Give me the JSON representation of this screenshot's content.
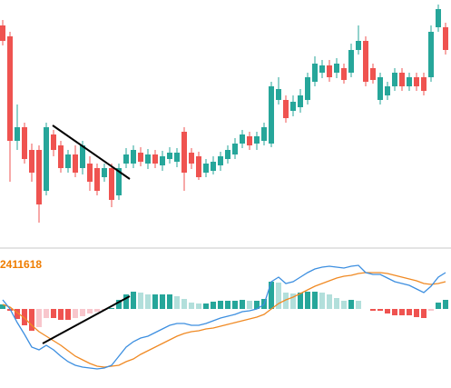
{
  "chart_data": [
    {
      "type": "candlestick",
      "ylim": [
        0,
        270
      ],
      "up_color": "#26a69a",
      "down_color": "#ef5350",
      "open": [
        242,
        230,
        115,
        130,
        105,
        105,
        60,
        122,
        110,
        85,
        100,
        85,
        90,
        85,
        75,
        85,
        55,
        90,
        90,
        102,
        90,
        100,
        88,
        95,
        92,
        125,
        102,
        98,
        80,
        82,
        88,
        95,
        100,
        112,
        120,
        112,
        115,
        112,
        160,
        160,
        148,
        152,
        160,
        180,
        190,
        198,
        190,
        195,
        190,
        215,
        225,
        195,
        160,
        165,
        175,
        190,
        175,
        185,
        185,
        185,
        240,
        240
      ],
      "high": [
        248,
        235,
        155,
        135,
        112,
        110,
        135,
        127,
        115,
        105,
        110,
        115,
        98,
        90,
        90,
        90,
        90,
        107,
        110,
        108,
        106,
        105,
        104,
        108,
        107,
        130,
        107,
        103,
        95,
        98,
        103,
        110,
        118,
        127,
        125,
        125,
        135,
        180,
        185,
        165,
        165,
        172,
        190,
        208,
        204,
        204,
        206,
        200,
        222,
        242,
        230,
        200,
        190,
        180,
        195,
        195,
        190,
        190,
        190,
        242,
        265,
        245
      ],
      "low": [
        220,
        70,
        105,
        90,
        70,
        25,
        55,
        98,
        80,
        80,
        75,
        78,
        60,
        55,
        70,
        42,
        50,
        85,
        85,
        87,
        84,
        85,
        82,
        90,
        86,
        60,
        84,
        72,
        75,
        78,
        82,
        90,
        95,
        107,
        105,
        105,
        110,
        108,
        155,
        135,
        142,
        146,
        155,
        175,
        184,
        180,
        184,
        178,
        185,
        210,
        175,
        178,
        155,
        160,
        170,
        170,
        170,
        170,
        165,
        180,
        235,
        210
      ],
      "close": [
        225,
        115,
        130,
        95,
        80,
        45,
        130,
        105,
        85,
        100,
        80,
        110,
        70,
        60,
        85,
        50,
        85,
        100,
        105,
        92,
        100,
        90,
        98,
        102,
        102,
        80,
        90,
        75,
        90,
        92,
        98,
        105,
        112,
        122,
        110,
        120,
        130,
        175,
        172,
        140,
        158,
        165,
        185,
        200,
        198,
        185,
        200,
        182,
        215,
        225,
        180,
        182,
        185,
        175,
        190,
        175,
        185,
        175,
        170,
        235,
        260,
        215
      ]
    },
    {
      "type": "macd",
      "ylim": [
        -87,
        65
      ],
      "annotation": "2411618",
      "annotation_color": "#ef7d00",
      "histogram": {
        "colors": [
          "#26a69a",
          "#b2dfdb",
          "#ef5350",
          "#f8c6cc"
        ],
        "values": [
          5,
          -2,
          -11,
          -18,
          -24,
          -20,
          -10,
          -10,
          -12,
          -12,
          -10,
          -8,
          -5,
          -3,
          -1,
          1,
          10,
          16,
          19,
          18,
          16,
          16,
          16,
          16,
          14,
          11,
          7,
          6,
          6,
          8,
          9,
          9,
          9,
          10,
          9,
          9,
          11,
          30,
          29,
          18,
          17,
          18,
          19,
          19,
          18,
          16,
          12,
          9,
          10,
          9,
          0,
          -2,
          -2,
          -5,
          -7,
          -7,
          -7,
          -9,
          -10,
          -2,
          7,
          10
        ]
      },
      "dif": {
        "color": "#3d8fe0",
        "values": [
          10,
          0,
          -15,
          -28,
          -42,
          -45,
          -40,
          -45,
          -52,
          -58,
          -62,
          -64,
          -65,
          -66,
          -65,
          -62,
          -52,
          -42,
          -36,
          -32,
          -30,
          -26,
          -22,
          -18,
          -16,
          -16,
          -18,
          -18,
          -16,
          -13,
          -10,
          -8,
          -6,
          -3,
          -2,
          0,
          5,
          30,
          35,
          28,
          30,
          35,
          40,
          44,
          46,
          47,
          46,
          45,
          47,
          48,
          40,
          38,
          38,
          34,
          30,
          28,
          26,
          22,
          18,
          25,
          35,
          40
        ]
      },
      "dea": {
        "color": "#f08a24",
        "values": [
          5,
          2,
          -4,
          -10,
          -18,
          -25,
          -30,
          -35,
          -40,
          -46,
          -52,
          -56,
          -60,
          -63,
          -64,
          -63,
          -62,
          -58,
          -55,
          -50,
          -46,
          -42,
          -38,
          -34,
          -30,
          -27,
          -25,
          -24,
          -22,
          -21,
          -19,
          -17,
          -15,
          -13,
          -11,
          -9,
          -6,
          0,
          6,
          10,
          13,
          17,
          21,
          25,
          28,
          31,
          34,
          36,
          37,
          39,
          40,
          40,
          40,
          39,
          37,
          35,
          33,
          31,
          28,
          27,
          28,
          30
        ]
      }
    }
  ]
}
